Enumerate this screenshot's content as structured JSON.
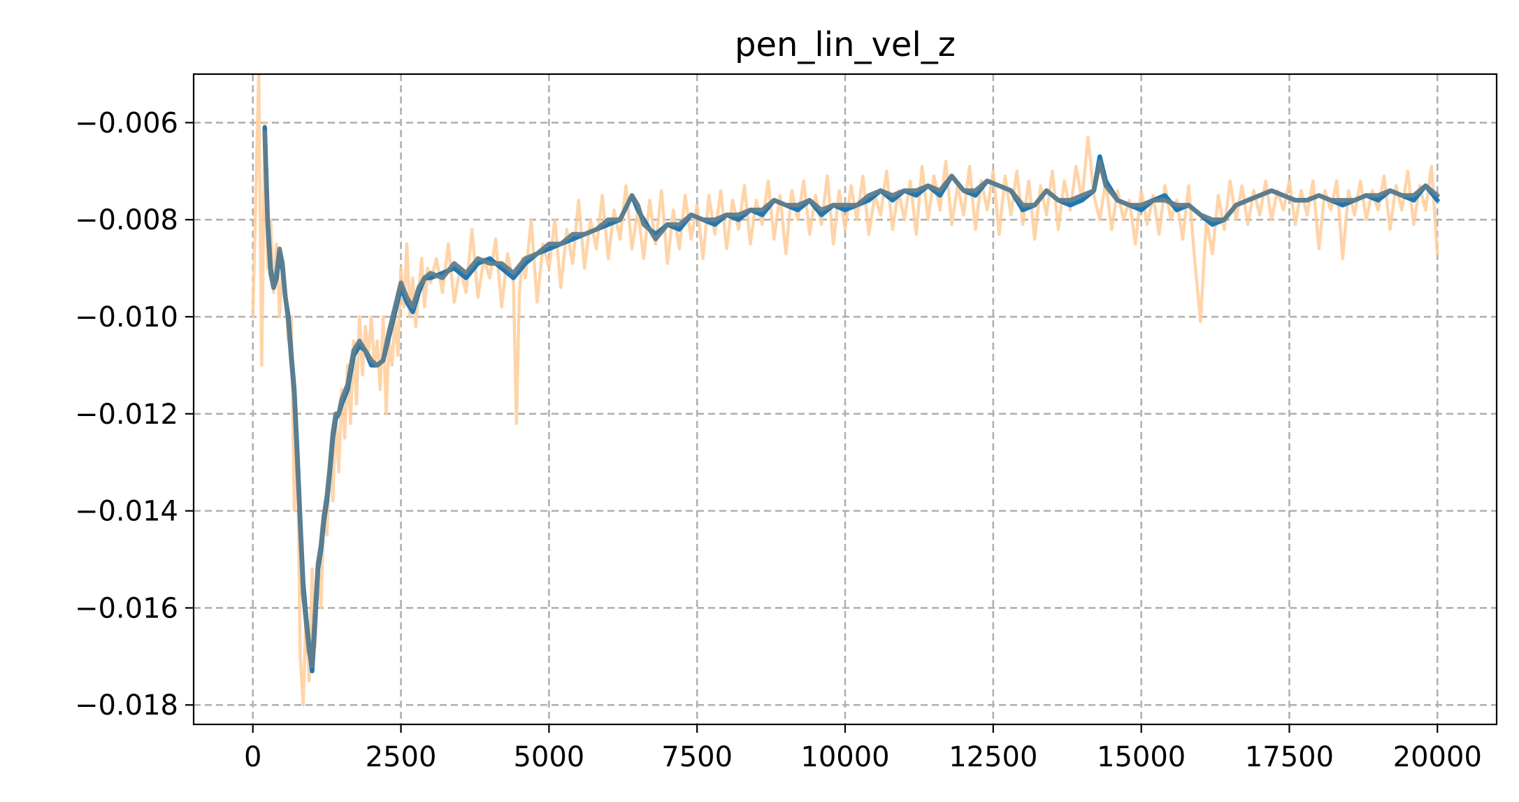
{
  "chart_data": {
    "type": "line",
    "title": "pen_lin_vel_z",
    "xlabel": "",
    "ylabel": "",
    "xlim": [
      -1000,
      21000
    ],
    "ylim": [
      -0.0184,
      -0.005
    ],
    "x_ticks": [
      0,
      2500,
      5000,
      7500,
      10000,
      12500,
      15000,
      17500,
      20000
    ],
    "x_tick_labels": [
      "0",
      "2500",
      "5000",
      "7500",
      "10000",
      "12500",
      "15000",
      "17500",
      "20000"
    ],
    "y_ticks": [
      -0.018,
      -0.016,
      -0.014,
      -0.012,
      -0.01,
      -0.008,
      -0.006
    ],
    "y_tick_labels": [
      "−0.018",
      "−0.016",
      "−0.014",
      "−0.012",
      "−0.010",
      "−0.008",
      "−0.006"
    ],
    "grid": true,
    "legend": "none",
    "colors": {
      "raw": "#ffcc99",
      "smoothed": "#1f77b4",
      "smoothed_overlay": "#607d8b"
    },
    "series": [
      {
        "style": "raw",
        "x": [
          0,
          100,
          150,
          200,
          250,
          300,
          350,
          400,
          450,
          500,
          550,
          600,
          650,
          700,
          750,
          800,
          850,
          900,
          950,
          1000,
          1050,
          1100,
          1150,
          1200,
          1250,
          1300,
          1350,
          1400,
          1450,
          1500,
          1550,
          1600,
          1650,
          1700,
          1750,
          1800,
          1850,
          1900,
          1950,
          2000,
          2050,
          2100,
          2150,
          2200,
          2250,
          2300,
          2350,
          2400,
          2450,
          2500,
          2550,
          2600,
          2650,
          2700,
          2750,
          2800,
          2850,
          2900,
          2950,
          3000,
          3100,
          3200,
          3300,
          3400,
          3500,
          3600,
          3700,
          3800,
          3900,
          4000,
          4100,
          4200,
          4300,
          4400,
          4450,
          4500,
          4550,
          4600,
          4700,
          4800,
          4900,
          5000,
          5100,
          5200,
          5300,
          5400,
          5500,
          5600,
          5700,
          5800,
          5900,
          6000,
          6100,
          6200,
          6300,
          6400,
          6500,
          6600,
          6700,
          6800,
          6900,
          7000,
          7100,
          7200,
          7300,
          7400,
          7500,
          7600,
          7700,
          7800,
          7900,
          8000,
          8100,
          8200,
          8300,
          8400,
          8500,
          8600,
          8700,
          8800,
          8900,
          9000,
          9100,
          9200,
          9300,
          9400,
          9500,
          9600,
          9700,
          9800,
          9900,
          10000,
          10100,
          10200,
          10300,
          10400,
          10500,
          10600,
          10700,
          10800,
          10900,
          11000,
          11100,
          11200,
          11300,
          11400,
          11500,
          11600,
          11700,
          11800,
          11900,
          12000,
          12100,
          12200,
          12300,
          12400,
          12500,
          12600,
          12700,
          12800,
          12900,
          13000,
          13100,
          13200,
          13300,
          13400,
          13500,
          13600,
          13700,
          13800,
          13900,
          14000,
          14100,
          14200,
          14300,
          14400,
          14500,
          14600,
          14700,
          14800,
          14900,
          15000,
          15100,
          15200,
          15300,
          15400,
          15500,
          15600,
          15700,
          15800,
          15900,
          16000,
          16100,
          16200,
          16300,
          16400,
          16500,
          16600,
          16700,
          16800,
          16900,
          17000,
          17100,
          17200,
          17300,
          17400,
          17500,
          17600,
          17700,
          17800,
          17900,
          18000,
          18100,
          18200,
          18300,
          18400,
          18500,
          18600,
          18700,
          18800,
          18900,
          19000,
          19100,
          19200,
          19300,
          19400,
          19500,
          19600,
          19700,
          19800,
          19900,
          20000
        ],
        "y": [
          -0.01,
          -0.005,
          -0.011,
          -0.006,
          -0.009,
          -0.008,
          -0.0095,
          -0.0085,
          -0.01,
          -0.009,
          -0.0095,
          -0.0105,
          -0.01,
          -0.014,
          -0.0125,
          -0.017,
          -0.018,
          -0.016,
          -0.0175,
          -0.0152,
          -0.0168,
          -0.015,
          -0.016,
          -0.014,
          -0.0145,
          -0.013,
          -0.0138,
          -0.012,
          -0.0132,
          -0.0115,
          -0.0125,
          -0.011,
          -0.0122,
          -0.0105,
          -0.0118,
          -0.01,
          -0.0112,
          -0.0102,
          -0.0108,
          -0.01,
          -0.011,
          -0.0105,
          -0.0115,
          -0.01,
          -0.012,
          -0.0105,
          -0.011,
          -0.01,
          -0.0108,
          -0.009,
          -0.0098,
          -0.0085,
          -0.01,
          -0.0092,
          -0.0102,
          -0.0095,
          -0.0088,
          -0.0098,
          -0.009,
          -0.0093,
          -0.0088,
          -0.0095,
          -0.0085,
          -0.0097,
          -0.009,
          -0.0095,
          -0.0082,
          -0.0096,
          -0.0088,
          -0.0092,
          -0.0084,
          -0.0098,
          -0.0087,
          -0.0093,
          -0.0122,
          -0.0095,
          -0.0088,
          -0.0092,
          -0.008,
          -0.0097,
          -0.0085,
          -0.009,
          -0.008,
          -0.0094,
          -0.0082,
          -0.0089,
          -0.0076,
          -0.009,
          -0.008,
          -0.0086,
          -0.0075,
          -0.0088,
          -0.0078,
          -0.0084,
          -0.0073,
          -0.0086,
          -0.0078,
          -0.0088,
          -0.0076,
          -0.0085,
          -0.0074,
          -0.0089,
          -0.0078,
          -0.0086,
          -0.0075,
          -0.0084,
          -0.0077,
          -0.0088,
          -0.0075,
          -0.0083,
          -0.0074,
          -0.0086,
          -0.0076,
          -0.0082,
          -0.0073,
          -0.0085,
          -0.0076,
          -0.0081,
          -0.0072,
          -0.0084,
          -0.0075,
          -0.0087,
          -0.0074,
          -0.008,
          -0.0072,
          -0.0083,
          -0.0075,
          -0.0081,
          -0.0071,
          -0.0085,
          -0.0074,
          -0.0082,
          -0.0073,
          -0.008,
          -0.0071,
          -0.0083,
          -0.0075,
          -0.0079,
          -0.007,
          -0.0082,
          -0.0074,
          -0.008,
          -0.0072,
          -0.0083,
          -0.0069,
          -0.008,
          -0.0071,
          -0.0078,
          -0.0068,
          -0.0081,
          -0.0073,
          -0.0079,
          -0.0069,
          -0.0082,
          -0.0072,
          -0.0078,
          -0.007,
          -0.0083,
          -0.0071,
          -0.0079,
          -0.007,
          -0.0081,
          -0.0072,
          -0.0084,
          -0.0073,
          -0.0079,
          -0.007,
          -0.0082,
          -0.0072,
          -0.0078,
          -0.0069,
          -0.0076,
          -0.0063,
          -0.0075,
          -0.008,
          -0.0072,
          -0.0082,
          -0.0074,
          -0.008,
          -0.0076,
          -0.0085,
          -0.0074,
          -0.0081,
          -0.0075,
          -0.0083,
          -0.0073,
          -0.008,
          -0.0076,
          -0.0084,
          -0.0073,
          -0.0088,
          -0.0101,
          -0.008,
          -0.0087,
          -0.0075,
          -0.0082,
          -0.0072,
          -0.008,
          -0.0073,
          -0.0081,
          -0.0074,
          -0.0079,
          -0.0072,
          -0.008,
          -0.0074,
          -0.0078,
          -0.0072,
          -0.0081,
          -0.0074,
          -0.0079,
          -0.0072,
          -0.0086,
          -0.0074,
          -0.0078,
          -0.0072,
          -0.0088,
          -0.0074,
          -0.0079,
          -0.0072,
          -0.008,
          -0.0074,
          -0.0078,
          -0.0071,
          -0.0082,
          -0.0073,
          -0.0078,
          -0.007,
          -0.0081,
          -0.0073,
          -0.0078,
          -0.0069,
          -0.0087
        ]
      },
      {
        "style": "smoothed",
        "x": [
          200,
          250,
          300,
          350,
          400,
          450,
          500,
          550,
          600,
          650,
          700,
          750,
          800,
          850,
          900,
          950,
          1000,
          1050,
          1100,
          1150,
          1200,
          1250,
          1300,
          1350,
          1400,
          1450,
          1500,
          1600,
          1700,
          1800,
          1900,
          2000,
          2100,
          2200,
          2300,
          2400,
          2500,
          2600,
          2700,
          2800,
          2900,
          3000,
          3200,
          3400,
          3600,
          3800,
          4000,
          4200,
          4400,
          4600,
          4800,
          5000,
          5200,
          5400,
          5600,
          5800,
          6000,
          6200,
          6400,
          6500,
          6600,
          6700,
          6800,
          7000,
          7200,
          7400,
          7600,
          7800,
          8000,
          8200,
          8400,
          8600,
          8800,
          9000,
          9200,
          9400,
          9600,
          9800,
          10000,
          10200,
          10400,
          10600,
          10800,
          11000,
          11200,
          11400,
          11600,
          11800,
          12000,
          12200,
          12400,
          12600,
          12800,
          13000,
          13200,
          13400,
          13600,
          13800,
          14000,
          14200,
          14300,
          14400,
          14600,
          14800,
          15000,
          15200,
          15400,
          15600,
          15800,
          16000,
          16200,
          16400,
          16600,
          16800,
          17000,
          17200,
          17400,
          17600,
          17800,
          18000,
          18200,
          18400,
          18600,
          18800,
          19000,
          19200,
          19400,
          19600,
          19800,
          20000
        ],
        "y": [
          -0.0061,
          -0.008,
          -0.009,
          -0.0094,
          -0.0092,
          -0.0087,
          -0.009,
          -0.0096,
          -0.01,
          -0.0108,
          -0.0115,
          -0.0128,
          -0.0142,
          -0.0155,
          -0.0162,
          -0.0168,
          -0.0173,
          -0.0163,
          -0.0152,
          -0.0148,
          -0.0142,
          -0.0138,
          -0.0132,
          -0.0125,
          -0.0121,
          -0.012,
          -0.0118,
          -0.0115,
          -0.0108,
          -0.0106,
          -0.0107,
          -0.011,
          -0.011,
          -0.0109,
          -0.0104,
          -0.0099,
          -0.0094,
          -0.0097,
          -0.0099,
          -0.0095,
          -0.0092,
          -0.0092,
          -0.0091,
          -0.009,
          -0.0092,
          -0.0089,
          -0.0088,
          -0.009,
          -0.0092,
          -0.0089,
          -0.0087,
          -0.0086,
          -0.0085,
          -0.0084,
          -0.0083,
          -0.0082,
          -0.0081,
          -0.008,
          -0.0075,
          -0.0078,
          -0.008,
          -0.0082,
          -0.0083,
          -0.0081,
          -0.0082,
          -0.0079,
          -0.008,
          -0.0081,
          -0.0079,
          -0.008,
          -0.0078,
          -0.0079,
          -0.0076,
          -0.0077,
          -0.0078,
          -0.0076,
          -0.0079,
          -0.0077,
          -0.0078,
          -0.0077,
          -0.0076,
          -0.0074,
          -0.0076,
          -0.0074,
          -0.0075,
          -0.0073,
          -0.0075,
          -0.0071,
          -0.0074,
          -0.0075,
          -0.0072,
          -0.0073,
          -0.0074,
          -0.0078,
          -0.0077,
          -0.0074,
          -0.0076,
          -0.0077,
          -0.0076,
          -0.0074,
          -0.0067,
          -0.0072,
          -0.0076,
          -0.0077,
          -0.0078,
          -0.0076,
          -0.0075,
          -0.0078,
          -0.0077,
          -0.0079,
          -0.0081,
          -0.008,
          -0.0077,
          -0.0076,
          -0.0075,
          -0.0074,
          -0.0075,
          -0.0076,
          -0.0076,
          -0.0075,
          -0.0076,
          -0.0077,
          -0.0076,
          -0.0075,
          -0.0076,
          -0.0074,
          -0.0075,
          -0.0076,
          -0.0073,
          -0.0076
        ]
      },
      {
        "style": "smoothed_overlay",
        "x": [
          200,
          250,
          300,
          350,
          400,
          450,
          500,
          550,
          600,
          650,
          700,
          750,
          800,
          850,
          900,
          950,
          1000,
          1050,
          1100,
          1150,
          1200,
          1250,
          1300,
          1350,
          1400,
          1450,
          1500,
          1600,
          1700,
          1800,
          1900,
          2000,
          2100,
          2200,
          2300,
          2400,
          2500,
          2600,
          2700,
          2800,
          2900,
          3000,
          3200,
          3400,
          3600,
          3800,
          4000,
          4200,
          4400,
          4600,
          4800,
          5000,
          5200,
          5400,
          5600,
          5800,
          6000,
          6200,
          6400,
          6500,
          6600,
          6700,
          6800,
          7000,
          7200,
          7400,
          7600,
          7800,
          8000,
          8200,
          8400,
          8600,
          8800,
          9000,
          9200,
          9400,
          9600,
          9800,
          10000,
          10200,
          10400,
          10600,
          10800,
          11000,
          11200,
          11400,
          11600,
          11800,
          12000,
          12200,
          12400,
          12600,
          12800,
          13000,
          13200,
          13400,
          13600,
          13800,
          14000,
          14200,
          14300,
          14400,
          14600,
          14800,
          15000,
          15200,
          15400,
          15600,
          15800,
          16000,
          16200,
          16400,
          16600,
          16800,
          17000,
          17200,
          17400,
          17600,
          17800,
          18000,
          18200,
          18400,
          18600,
          18800,
          19000,
          19200,
          19400,
          19600,
          19800,
          20000
        ],
        "y": [
          -0.0062,
          -0.0081,
          -0.0091,
          -0.0094,
          -0.0091,
          -0.0086,
          -0.0089,
          -0.0096,
          -0.0101,
          -0.0109,
          -0.0116,
          -0.013,
          -0.0143,
          -0.0157,
          -0.0163,
          -0.0169,
          -0.0172,
          -0.0161,
          -0.0151,
          -0.0147,
          -0.0141,
          -0.0137,
          -0.0131,
          -0.0124,
          -0.012,
          -0.012,
          -0.0117,
          -0.0114,
          -0.0107,
          -0.0105,
          -0.0107,
          -0.0109,
          -0.011,
          -0.0109,
          -0.0103,
          -0.0098,
          -0.0093,
          -0.0096,
          -0.0098,
          -0.0094,
          -0.0092,
          -0.0091,
          -0.0092,
          -0.0089,
          -0.0091,
          -0.0088,
          -0.0089,
          -0.0089,
          -0.0091,
          -0.0088,
          -0.0087,
          -0.0085,
          -0.0085,
          -0.0083,
          -0.0083,
          -0.0082,
          -0.008,
          -0.008,
          -0.0075,
          -0.0077,
          -0.0081,
          -0.0082,
          -0.0084,
          -0.0081,
          -0.0081,
          -0.0079,
          -0.008,
          -0.008,
          -0.0079,
          -0.0079,
          -0.0078,
          -0.0078,
          -0.0076,
          -0.0077,
          -0.0077,
          -0.0076,
          -0.0078,
          -0.0077,
          -0.0077,
          -0.0077,
          -0.0075,
          -0.0074,
          -0.0075,
          -0.0074,
          -0.0074,
          -0.0073,
          -0.0074,
          -0.0071,
          -0.0074,
          -0.0074,
          -0.0072,
          -0.0073,
          -0.0074,
          -0.0077,
          -0.0077,
          -0.0074,
          -0.0076,
          -0.0076,
          -0.0075,
          -0.0074,
          -0.0068,
          -0.0073,
          -0.0076,
          -0.0077,
          -0.0077,
          -0.0076,
          -0.0076,
          -0.0077,
          -0.0077,
          -0.0079,
          -0.008,
          -0.008,
          -0.0077,
          -0.0076,
          -0.0075,
          -0.0074,
          -0.0075,
          -0.0076,
          -0.0076,
          -0.0075,
          -0.0076,
          -0.0076,
          -0.0076,
          -0.0075,
          -0.0075,
          -0.0074,
          -0.0075,
          -0.0075,
          -0.0073,
          -0.0075
        ]
      }
    ]
  }
}
